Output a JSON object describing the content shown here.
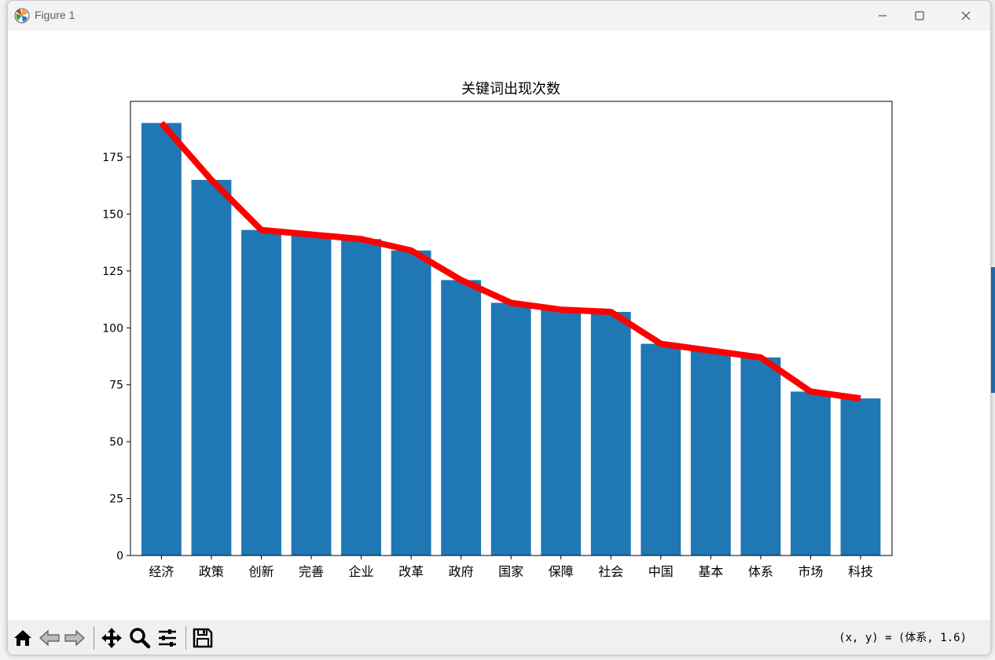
{
  "window": {
    "title": "Figure 1"
  },
  "toolbar": {
    "coords": "(x, y) = (体系, 1.6)",
    "buttons": [
      "home-icon",
      "back-icon",
      "forward-icon",
      "pan-icon",
      "zoom-icon",
      "configure-subplots-icon",
      "save-icon"
    ]
  },
  "colors": {
    "bar": "#1f77b4",
    "line": "#ff0000"
  },
  "chart_data": {
    "type": "bar",
    "title": "关键词出现次数",
    "xlabel": "",
    "ylabel": "",
    "categories": [
      "经济",
      "政策",
      "创新",
      "完善",
      "企业",
      "改革",
      "政府",
      "国家",
      "保障",
      "社会",
      "中国",
      "基本",
      "体系",
      "市场",
      "科技"
    ],
    "values": [
      190,
      165,
      143,
      141,
      139,
      134,
      121,
      111,
      108,
      107,
      93,
      90,
      87,
      72,
      69
    ],
    "line_values": [
      190,
      165,
      143,
      141,
      139,
      134,
      121,
      111,
      108,
      107,
      93,
      90,
      87,
      72,
      69
    ],
    "ylim": [
      0,
      199.5
    ],
    "yticks": [
      0,
      25,
      50,
      75,
      100,
      125,
      150,
      175
    ],
    "grid": false,
    "legend": "none"
  }
}
